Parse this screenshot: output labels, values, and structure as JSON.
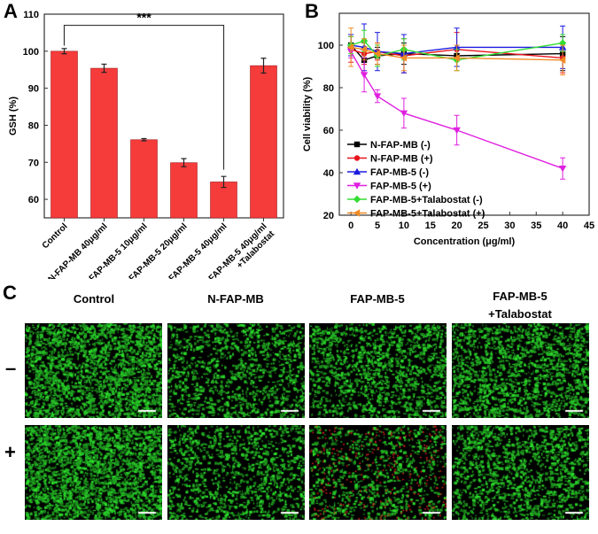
{
  "panels": {
    "a": "A",
    "b": "B",
    "c": "C"
  },
  "chart_data": [
    {
      "type": "bar",
      "title": "",
      "xlabel": "",
      "ylabel": "GSH (%)",
      "ylim": [
        55,
        110
      ],
      "yticks": [
        60,
        70,
        80,
        90,
        100,
        110
      ],
      "categories": [
        "Control",
        "N-FAP-MB 40μg/ml",
        "FAP-MB-5 10μg/ml",
        "FAP-MB-5 20μg/ml",
        "FAP-MB-5 40μg/ml",
        "FAP-MB-5 40μg/ml +Talabostat"
      ],
      "values": [
        100,
        95.4,
        76.1,
        69.9,
        64.7,
        96.1
      ],
      "errors": [
        0.7,
        1.1,
        0.3,
        1.1,
        1.5,
        2.0
      ],
      "bar_color": "#f63b3b",
      "annotation": {
        "text": "***",
        "from": 0,
        "to": 4
      }
    },
    {
      "type": "line",
      "xlabel": "Concentration (μg/ml)",
      "ylabel": "Cell viability (%)",
      "xlim": [
        -2.2,
        45
      ],
      "ylim": [
        20,
        115
      ],
      "xticks": [
        0,
        5,
        10,
        15,
        20,
        25,
        30,
        35,
        40,
        45
      ],
      "yticks": [
        20,
        40,
        60,
        80,
        100
      ],
      "legend_position": "bottom-left",
      "x": [
        0,
        2.5,
        5,
        10,
        20,
        40
      ],
      "series": [
        {
          "name": "N-FAP-MB (-)",
          "color": "#000000",
          "marker": "square",
          "values": [
            100,
            93,
            95,
            96,
            95,
            96
          ],
          "errors": [
            5,
            6,
            4,
            5,
            5,
            8
          ]
        },
        {
          "name": "N-FAP-MB (+)",
          "color": "#e8141c",
          "marker": "circle",
          "values": [
            98,
            96,
            97,
            95,
            98,
            94
          ],
          "errors": [
            6,
            5,
            4,
            8,
            8,
            7
          ]
        },
        {
          "name": "FAP-MB-5 (-)",
          "color": "#1a1ae0",
          "marker": "triangle-up",
          "values": [
            100,
            99,
            97,
            96,
            99,
            99
          ],
          "errors": [
            5,
            11,
            9,
            9,
            9,
            10
          ]
        },
        {
          "name": "FAP-MB-5 (+)",
          "color": "#e020e0",
          "marker": "triangle-down",
          "values": [
            97,
            86,
            76,
            68,
            60,
            42
          ],
          "errors": [
            3,
            8,
            3,
            7,
            7,
            5
          ]
        },
        {
          "name": "FAP-MB-5+Talabostat (-)",
          "color": "#33dd33",
          "marker": "diamond",
          "values": [
            100,
            102,
            95,
            98,
            93,
            101
          ],
          "errors": [
            4,
            5,
            5,
            5,
            5,
            4
          ]
        },
        {
          "name": "FAP-MB-5+Talabostat (+)",
          "color": "#f08a24",
          "marker": "triangle-left",
          "values": [
            99,
            98,
            96,
            94,
            94,
            93
          ],
          "errors": [
            9,
            5,
            5,
            6,
            6,
            7
          ]
        }
      ]
    }
  ],
  "micrographs": {
    "columns": [
      "Control",
      "N-FAP-MB",
      "FAP-MB-5",
      "FAP-MB-5\n+Talabostat"
    ],
    "column_line1": [
      "Control",
      "N-FAP-MB",
      "FAP-MB-5",
      "FAP-MB-5"
    ],
    "column_line2": [
      "",
      "",
      "",
      "+Talabostat"
    ],
    "rows": [
      "–",
      "+"
    ],
    "live_color": "#2ed12e",
    "dead_color": "#e02020"
  }
}
